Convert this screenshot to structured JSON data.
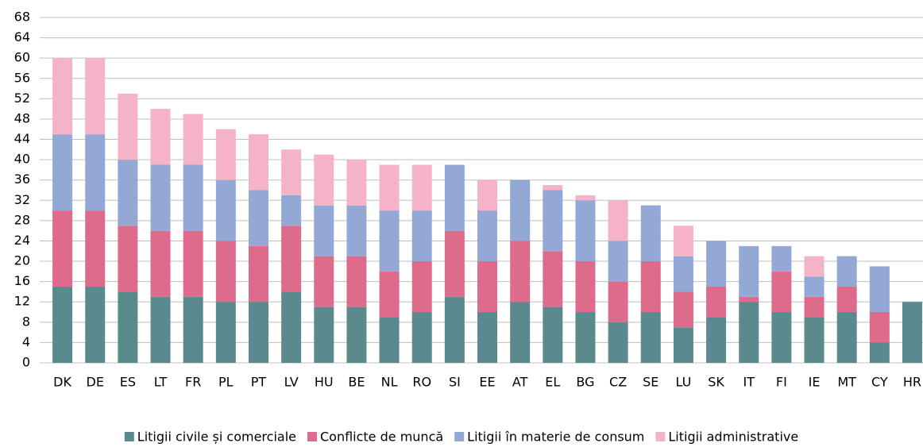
{
  "chart_data": {
    "type": "stacked-bar",
    "categories": [
      "DK",
      "DE",
      "ES",
      "LT",
      "FR",
      "PL",
      "PT",
      "LV",
      "HU",
      "BE",
      "NL",
      "RO",
      "SI",
      "EE",
      "AT",
      "EL",
      "BG",
      "CZ",
      "SE",
      "LU",
      "SK",
      "IT",
      "FI",
      "IE",
      "MT",
      "CY",
      "HR"
    ],
    "series": [
      {
        "name": "Litigii civile și comerciale",
        "color": "#5b8a8e",
        "values": [
          15,
          15,
          14,
          13,
          13,
          12,
          12,
          14,
          11,
          11,
          9,
          10,
          13,
          10,
          12,
          11,
          10,
          8,
          10,
          7,
          9,
          12,
          10,
          9,
          10,
          4,
          12
        ]
      },
      {
        "name": "Conflicte de muncă",
        "color": "#de6b8c",
        "values": [
          15,
          15,
          13,
          13,
          13,
          12,
          11,
          13,
          10,
          10,
          9,
          10,
          13,
          10,
          12,
          11,
          10,
          8,
          10,
          7,
          6,
          1,
          8,
          4,
          5,
          6,
          0
        ]
      },
      {
        "name": "Litigii în materie de consum",
        "color": "#94a8d6",
        "values": [
          15,
          15,
          13,
          13,
          13,
          12,
          11,
          6,
          10,
          10,
          12,
          10,
          13,
          10,
          12,
          12,
          12,
          8,
          11,
          7,
          9,
          10,
          5,
          4,
          6,
          9,
          0
        ]
      },
      {
        "name": "Litigii administrative",
        "color": "#f5b3c8",
        "values": [
          15,
          15,
          13,
          11,
          10,
          10,
          11,
          9,
          10,
          9,
          9,
          9,
          0,
          6,
          0,
          1,
          1,
          8,
          0,
          6,
          0,
          0,
          0,
          4,
          0,
          0,
          0
        ]
      }
    ],
    "ylim": [
      0,
      68
    ],
    "yticks": [
      0,
      4,
      8,
      12,
      16,
      20,
      24,
      28,
      32,
      36,
      40,
      44,
      48,
      52,
      56,
      60,
      64,
      68
    ],
    "grid": true,
    "legend": "bottom"
  }
}
